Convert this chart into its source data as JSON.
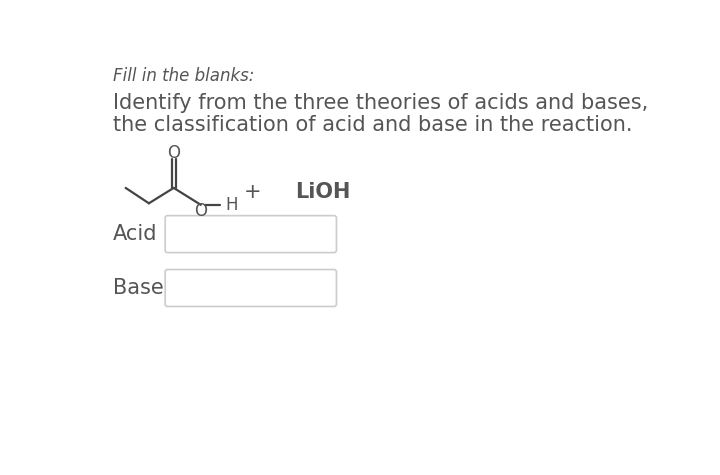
{
  "background_color": "#ffffff",
  "panel_color": "#ffffff",
  "title_italic": "Fill in the blanks:",
  "body_text_line1": "Identify from the three theories of acids and bases,",
  "body_text_line2": "the classification of acid and base in the reaction.",
  "label_acid": "Acid",
  "label_base": "Base",
  "lioh_text": "LiOH",
  "plus_text": "+",
  "h_text": "H",
  "o_upper_text": "O",
  "o_lower_text": "O",
  "text_color": "#555555",
  "bond_color": "#444444",
  "box_edge_color": "#cccccc",
  "box_fill_color": "#ffffff",
  "title_fontsize": 12,
  "body_fontsize": 15,
  "label_fontsize": 15,
  "chem_fontsize": 13
}
